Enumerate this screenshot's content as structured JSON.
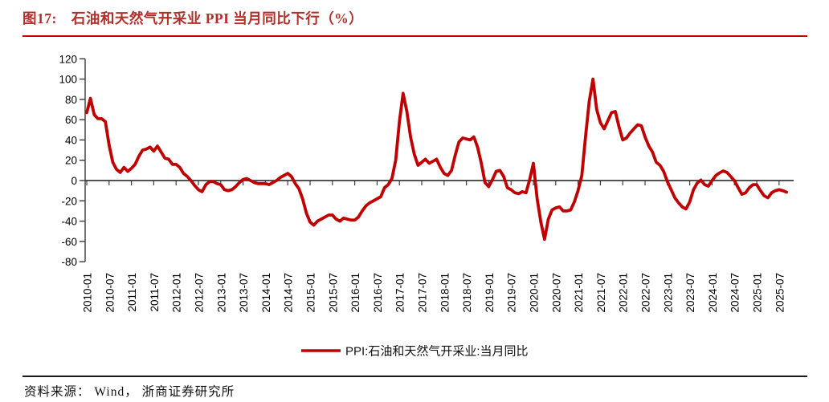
{
  "figure": {
    "number_label": "图17:",
    "title": "石油和天然气开采业 PPI 当月同比下行（%）",
    "source_note": "资料来源： Wind， 浙商证券研究所"
  },
  "colors": {
    "title_red": "#B0302A",
    "rule_red": "#C00000",
    "line_red": "#C00000",
    "axis": "#3a3a3a",
    "text": "#000000"
  },
  "chart_data": {
    "type": "line",
    "title": "石油和天然气开采业 PPI 当月同比下行（%）",
    "legend": "PPI:石油和天然气开采业:当月同比",
    "legend_position": "bottom-center",
    "grid": false,
    "unit": "%",
    "ylim": [
      -80,
      120
    ],
    "y_ticks": [
      120,
      100,
      80,
      60,
      40,
      20,
      0,
      -20,
      -40,
      -60,
      -80
    ],
    "x_frequency": "monthly",
    "x_range": [
      "2010-01",
      "2025-09"
    ],
    "x_tick_labels": [
      "2010-01",
      "2010-07",
      "2011-01",
      "2011-07",
      "2012-01",
      "2012-07",
      "2013-01",
      "2013-07",
      "2014-01",
      "2014-07",
      "2015-01",
      "2015-07",
      "2016-01",
      "2016-07",
      "2017-01",
      "2017-07",
      "2018-01",
      "2018-07",
      "2019-01",
      "2019-07",
      "2020-01",
      "2020-07",
      "2021-01",
      "2021-07",
      "2022-01",
      "2022-07",
      "2023-01",
      "2023-07",
      "2024-01",
      "2024-07",
      "2025-01",
      "2025-07"
    ],
    "series": [
      {
        "name": "PPI:石油和天然气开采业:当月同比",
        "color": "#C00000",
        "values": [
          67,
          81,
          65,
          61,
          61,
          58,
          35,
          18,
          11,
          8,
          13,
          9,
          12,
          16,
          24,
          30,
          31,
          33,
          29,
          34,
          28,
          22,
          21,
          16,
          16,
          13,
          7,
          4,
          0,
          -5,
          -9,
          -11,
          -4,
          -1,
          -1,
          -3,
          -4,
          -9,
          -10,
          -9,
          -6,
          -2,
          1,
          2,
          0,
          -2,
          -3,
          -3,
          -3,
          -4,
          -2,
          0,
          3,
          5,
          7,
          4,
          -3,
          -8,
          -18,
          -32,
          -41,
          -44,
          -40,
          -38,
          -36,
          -34,
          -34,
          -38,
          -40,
          -37,
          -38,
          -39,
          -39,
          -36,
          -30,
          -25,
          -22,
          -20,
          -18,
          -16,
          -7,
          -4,
          2,
          20,
          58,
          86,
          68,
          43,
          26,
          15,
          18,
          21,
          17,
          19,
          21,
          13,
          7,
          5,
          10,
          25,
          38,
          42,
          41,
          40,
          43,
          33,
          17,
          -2,
          -6,
          1,
          9,
          10,
          4,
          -7,
          -9,
          -12,
          -13,
          -11,
          -12,
          1,
          17,
          -18,
          -41,
          -58,
          -38,
          -29,
          -27,
          -26,
          -30,
          -30,
          -29,
          -21,
          -10,
          5,
          43,
          78,
          100,
          70,
          57,
          51,
          59,
          67,
          68,
          53,
          40,
          42,
          47,
          51,
          55,
          54,
          43,
          34,
          28,
          18,
          15,
          9,
          -1,
          -9,
          -17,
          -22,
          -26,
          -28,
          -21,
          -9,
          -2.5,
          0.5,
          -4,
          -5.5,
          0,
          5,
          7.5,
          9.5,
          8,
          4,
          0,
          -7,
          -13.5,
          -12,
          -7,
          -4,
          -4,
          -10,
          -15,
          -17,
          -12,
          -10,
          -9,
          -10,
          -11.5
        ]
      }
    ]
  }
}
